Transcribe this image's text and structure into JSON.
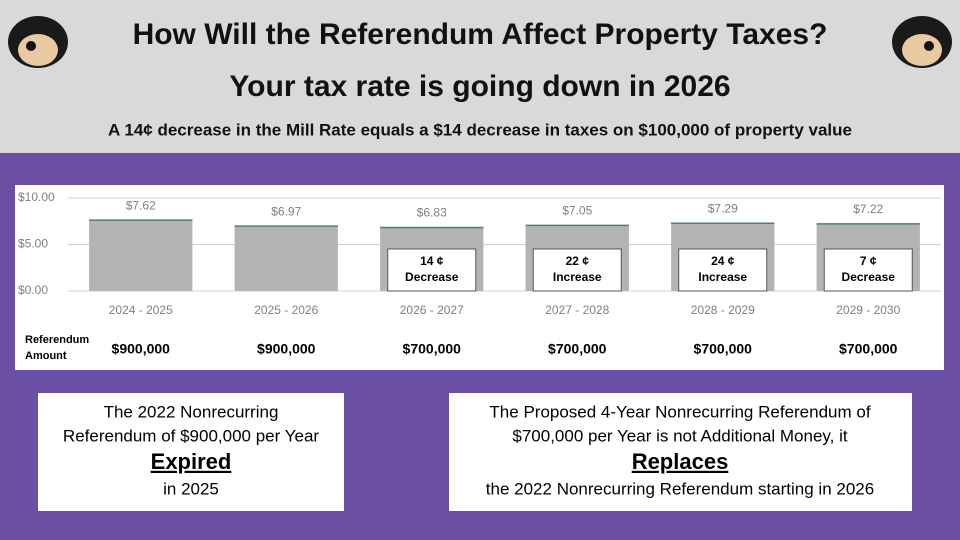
{
  "header": {
    "title": "How Will the Referendum Affect Property Taxes?",
    "subtitle": "Your tax rate is going down in 2026",
    "note": "A 14¢ decrease in the Mill Rate equals a $14 decrease in taxes on $100,000 of property value"
  },
  "chart_data": {
    "type": "bar",
    "categories": [
      "2024 - 2025",
      "2025 - 2026",
      "2026 - 2027",
      "2027 - 2028",
      "2028 - 2029",
      "2029 - 2030"
    ],
    "values": [
      7.62,
      6.97,
      6.83,
      7.05,
      7.29,
      7.22
    ],
    "value_labels": [
      "$7.62",
      "$6.97",
      "$6.83",
      "$7.05",
      "$7.29",
      "$7.22"
    ],
    "color": "#b3b3b3",
    "ylim": [
      0,
      10
    ],
    "yticks": [
      {
        "value": 0,
        "label": "$0.00"
      },
      {
        "value": 5,
        "label": "$5.00"
      },
      {
        "value": 10,
        "label": "$10.00"
      }
    ],
    "grid": true,
    "annotations": [
      null,
      null,
      {
        "amount": "14 ¢",
        "direction": "Decrease"
      },
      {
        "amount": "22 ¢",
        "direction": "Increase"
      },
      {
        "amount": "24 ¢",
        "direction": "Increase"
      },
      {
        "amount": "7 ¢",
        "direction": "Decrease"
      }
    ],
    "referendum": {
      "label": [
        "Referendum",
        "Amount"
      ],
      "amounts": [
        "$900,000",
        "$900,000",
        "$700,000",
        "$700,000",
        "$700,000",
        "$700,000"
      ]
    }
  },
  "boxes": [
    {
      "lines": [
        "The 2022 Nonrecurring",
        "Referendum of $900,000 per Year"
      ],
      "emphasis": "Expired",
      "closing": "in 2025"
    },
    {
      "lines": [
        "The Proposed 4-Year Nonrecurring Referendum of",
        "$700,000 per Year is not Additional Money, it"
      ],
      "emphasis": "Replaces",
      "closing": "the 2022 Nonrecurring Referendum starting in 2026"
    }
  ]
}
